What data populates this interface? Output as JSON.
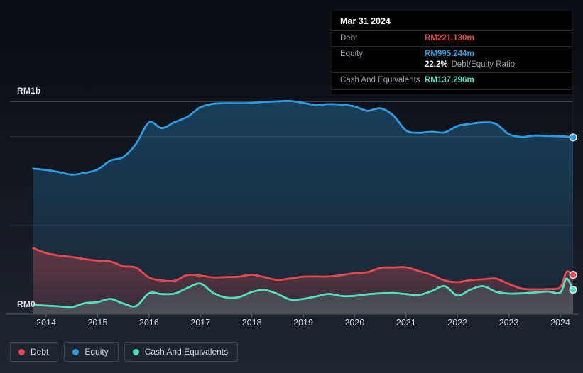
{
  "y_axis": {
    "top_label": "RM1b",
    "bottom_label": "RM0"
  },
  "x_axis": {
    "ticks": [
      "2014",
      "2015",
      "2016",
      "2017",
      "2018",
      "2019",
      "2020",
      "2021",
      "2022",
      "2023",
      "2024"
    ]
  },
  "legend": {
    "items": [
      {
        "label": "Debt",
        "color": "#e5484d"
      },
      {
        "label": "Equity",
        "color": "#2e9be1"
      },
      {
        "label": "Cash And Equivalents",
        "color": "#50dfc0"
      }
    ]
  },
  "tooltip": {
    "date": "Mar 31 2024",
    "rows": [
      {
        "label": "Debt",
        "value": "RM221.130m",
        "color": "#e5484d"
      },
      {
        "label": "Equity",
        "value": "RM995.244m",
        "color": "#2e9be1",
        "ratio_pct": "22.2%",
        "ratio_label": "Debt/Equity Ratio"
      },
      {
        "label": "Cash And Equivalents",
        "value": "RM137.296m",
        "color": "#50dfc0"
      }
    ]
  },
  "chart_data": {
    "type": "area",
    "title": "Debt to Equity History and Analysis",
    "unit": "RM millions",
    "ylabel": "RM",
    "ylim_m": [
      0,
      1198
    ],
    "y_gridlines_m": [
      500,
      1000
    ],
    "x_tick_years": [
      2014,
      2015,
      2016,
      2017,
      2018,
      2019,
      2020,
      2021,
      2022,
      2023,
      2024
    ],
    "x_years": [
      2013.75,
      2014.0,
      2014.25,
      2014.5,
      2014.75,
      2015.0,
      2015.25,
      2015.5,
      2015.75,
      2016.0,
      2016.25,
      2016.5,
      2016.75,
      2017.0,
      2017.25,
      2017.5,
      2017.75,
      2018.0,
      2018.25,
      2018.5,
      2018.75,
      2019.0,
      2019.25,
      2019.5,
      2019.75,
      2020.0,
      2020.25,
      2020.5,
      2020.75,
      2021.0,
      2021.25,
      2021.5,
      2021.75,
      2022.0,
      2022.25,
      2022.5,
      2022.75,
      2023.0,
      2023.25,
      2023.5,
      2023.75,
      2024.0,
      2024.12,
      2024.25
    ],
    "series": [
      {
        "name": "Equity",
        "color": "#2e9be1",
        "values": [
          820,
          812,
          800,
          786,
          795,
          815,
          865,
          885,
          960,
          1080,
          1048,
          1082,
          1112,
          1165,
          1185,
          1188,
          1188,
          1190,
          1196,
          1199,
          1201,
          1190,
          1178,
          1183,
          1180,
          1170,
          1145,
          1160,
          1120,
          1035,
          1022,
          1027,
          1024,
          1060,
          1072,
          1080,
          1072,
          1014,
          998,
          1006,
          1004,
          1002,
          1000,
          995.244
        ]
      },
      {
        "name": "Debt",
        "color": "#e5484d",
        "values": [
          371,
          344,
          330,
          322,
          310,
          302,
          297,
          270,
          262,
          206,
          190,
          188,
          221,
          217,
          207,
          209,
          211,
          222,
          208,
          193,
          201,
          211,
          212,
          212,
          220,
          231,
          236,
          260,
          263,
          264,
          243,
          221,
          190,
          180,
          192,
          196,
          200,
          170,
          144,
          140,
          141,
          152,
          238,
          221.13
        ]
      },
      {
        "name": "Cash And Equivalents",
        "color": "#50dfc0",
        "values": [
          52,
          48,
          44,
          40,
          62,
          68,
          86,
          60,
          46,
          118,
          113,
          116,
          148,
          172,
          120,
          94,
          96,
          125,
          136,
          114,
          82,
          86,
          100,
          114,
          102,
          103,
          112,
          117,
          119,
          113,
          108,
          130,
          158,
          105,
          138,
          158,
          126,
          116,
          117,
          122,
          128,
          122,
          200,
          137.296
        ]
      }
    ],
    "latest": {
      "date": "Mar 31 2024",
      "debt_m": 221.13,
      "equity_m": 995.244,
      "cash_m": 137.296,
      "debt_equity_ratio_pct": 22.2
    }
  }
}
